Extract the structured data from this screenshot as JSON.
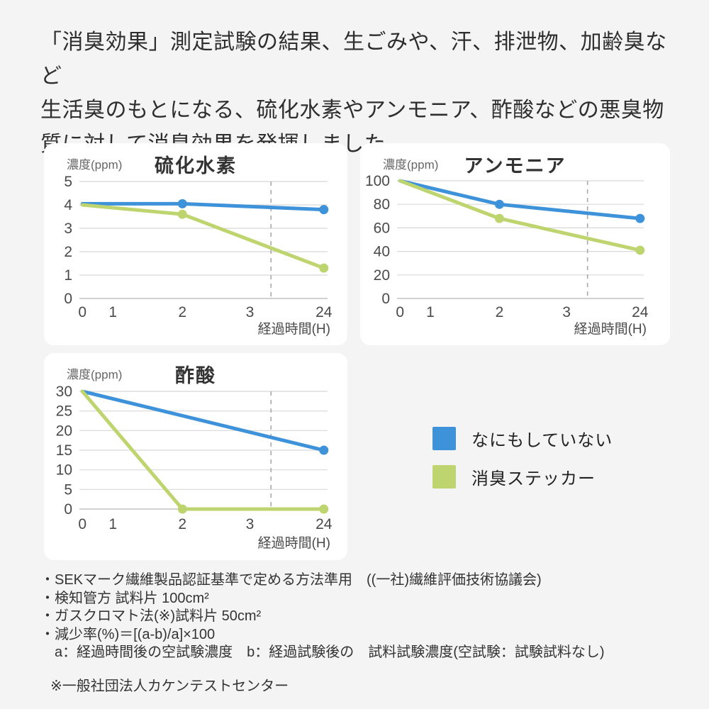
{
  "page": {
    "background": "#f4f4f4"
  },
  "header": {
    "text": "「消臭効果」測定試験の結果、生ごみや、汗、排泄物、加齢臭など\n生活臭のもとになる、硫化水素やアンモニア、酢酸などの悪臭物\n質に対して消臭効果を発揮しました。"
  },
  "colors": {
    "untreated_blue": "#3E92D9",
    "sticker_green": "#BED56F",
    "grid": "#d8d8d8",
    "axis": "#c2c2c2",
    "dashed": "#aaaaaa",
    "card_background": "#ffffff",
    "page_background": "#f4f4f4"
  },
  "legend": {
    "items": [
      {
        "label": "なにもしていない",
        "color": "#3E92D9"
      },
      {
        "label": "消臭ステッカー",
        "color": "#BED56F"
      }
    ]
  },
  "chart_data": [
    {
      "type": "line",
      "title": "硫化水素",
      "ylabel": "濃度(ppm)",
      "xlabel": "経過時間(H)",
      "x_ticks": [
        "0",
        "1",
        "2",
        "3",
        "24"
      ],
      "y_ticks": [
        0,
        1,
        2,
        3,
        4,
        5
      ],
      "ylim": [
        0,
        5
      ],
      "grid": true,
      "axis_break_dashed_line": true,
      "series": [
        {
          "name": "なにもしていない",
          "color": "#3E92D9",
          "points": [
            {
              "x": 0,
              "y": 4.05,
              "dot": false
            },
            {
              "x": 2,
              "y": 4.05,
              "dot": true
            },
            {
              "x": 24,
              "y": 3.8,
              "dot": true
            }
          ]
        },
        {
          "name": "消臭ステッカー",
          "color": "#BED56F",
          "points": [
            {
              "x": 0,
              "y": 4.0,
              "dot": false
            },
            {
              "x": 2,
              "y": 3.6,
              "dot": true
            },
            {
              "x": 24,
              "y": 1.3,
              "dot": true
            }
          ]
        }
      ]
    },
    {
      "type": "line",
      "title": "アンモニア",
      "ylabel": "濃度(ppm)",
      "xlabel": "経過時間(H)",
      "x_ticks": [
        "0",
        "1",
        "2",
        "3",
        "24"
      ],
      "y_ticks": [
        0,
        20,
        40,
        60,
        80,
        100
      ],
      "ylim": [
        0,
        100
      ],
      "grid": true,
      "axis_break_dashed_line": true,
      "series": [
        {
          "name": "なにもしていない",
          "color": "#3E92D9",
          "points": [
            {
              "x": 0,
              "y": 100,
              "dot": false
            },
            {
              "x": 2,
              "y": 80,
              "dot": true
            },
            {
              "x": 24,
              "y": 68,
              "dot": true
            }
          ]
        },
        {
          "name": "消臭ステッカー",
          "color": "#BED56F",
          "points": [
            {
              "x": 0,
              "y": 100,
              "dot": false
            },
            {
              "x": 2,
              "y": 68,
              "dot": true
            },
            {
              "x": 24,
              "y": 41,
              "dot": true
            }
          ]
        }
      ]
    },
    {
      "type": "line",
      "title": "酢酸",
      "ylabel": "濃度(ppm)",
      "xlabel": "経過時間(H)",
      "x_ticks": [
        "0",
        "1",
        "2",
        "3",
        "24"
      ],
      "y_ticks": [
        0,
        5,
        10,
        15,
        20,
        25,
        30
      ],
      "ylim": [
        0,
        30
      ],
      "grid": true,
      "axis_break_dashed_line": true,
      "series": [
        {
          "name": "なにもしていない",
          "color": "#3E92D9",
          "points": [
            {
              "x": 0,
              "y": 30,
              "dot": false
            },
            {
              "x": 24,
              "y": 15,
              "dot": true
            }
          ]
        },
        {
          "name": "消臭ステッカー",
          "color": "#BED56F",
          "points": [
            {
              "x": 0,
              "y": 30,
              "dot": false
            },
            {
              "x": 2,
              "y": 0,
              "dot": true
            },
            {
              "x": 24,
              "y": 0,
              "dot": true
            }
          ]
        }
      ]
    }
  ],
  "footnotes": {
    "lines": [
      "・SEKマーク繊維製品認証基準で定める方法準用　((一社)繊維評価技術協議会)",
      "・検知管方 試料片 100cm²",
      "・ガスクロマト法(※)試料片 50cm²",
      "・減少率(%)＝[(a-b)/a]×100",
      "　a：経過時間後の空試験濃度　b：経過試験後の　試料試験濃度(空試験：試験試料なし)"
    ],
    "source_note": "※一般社団法人カケンテストセンター"
  }
}
